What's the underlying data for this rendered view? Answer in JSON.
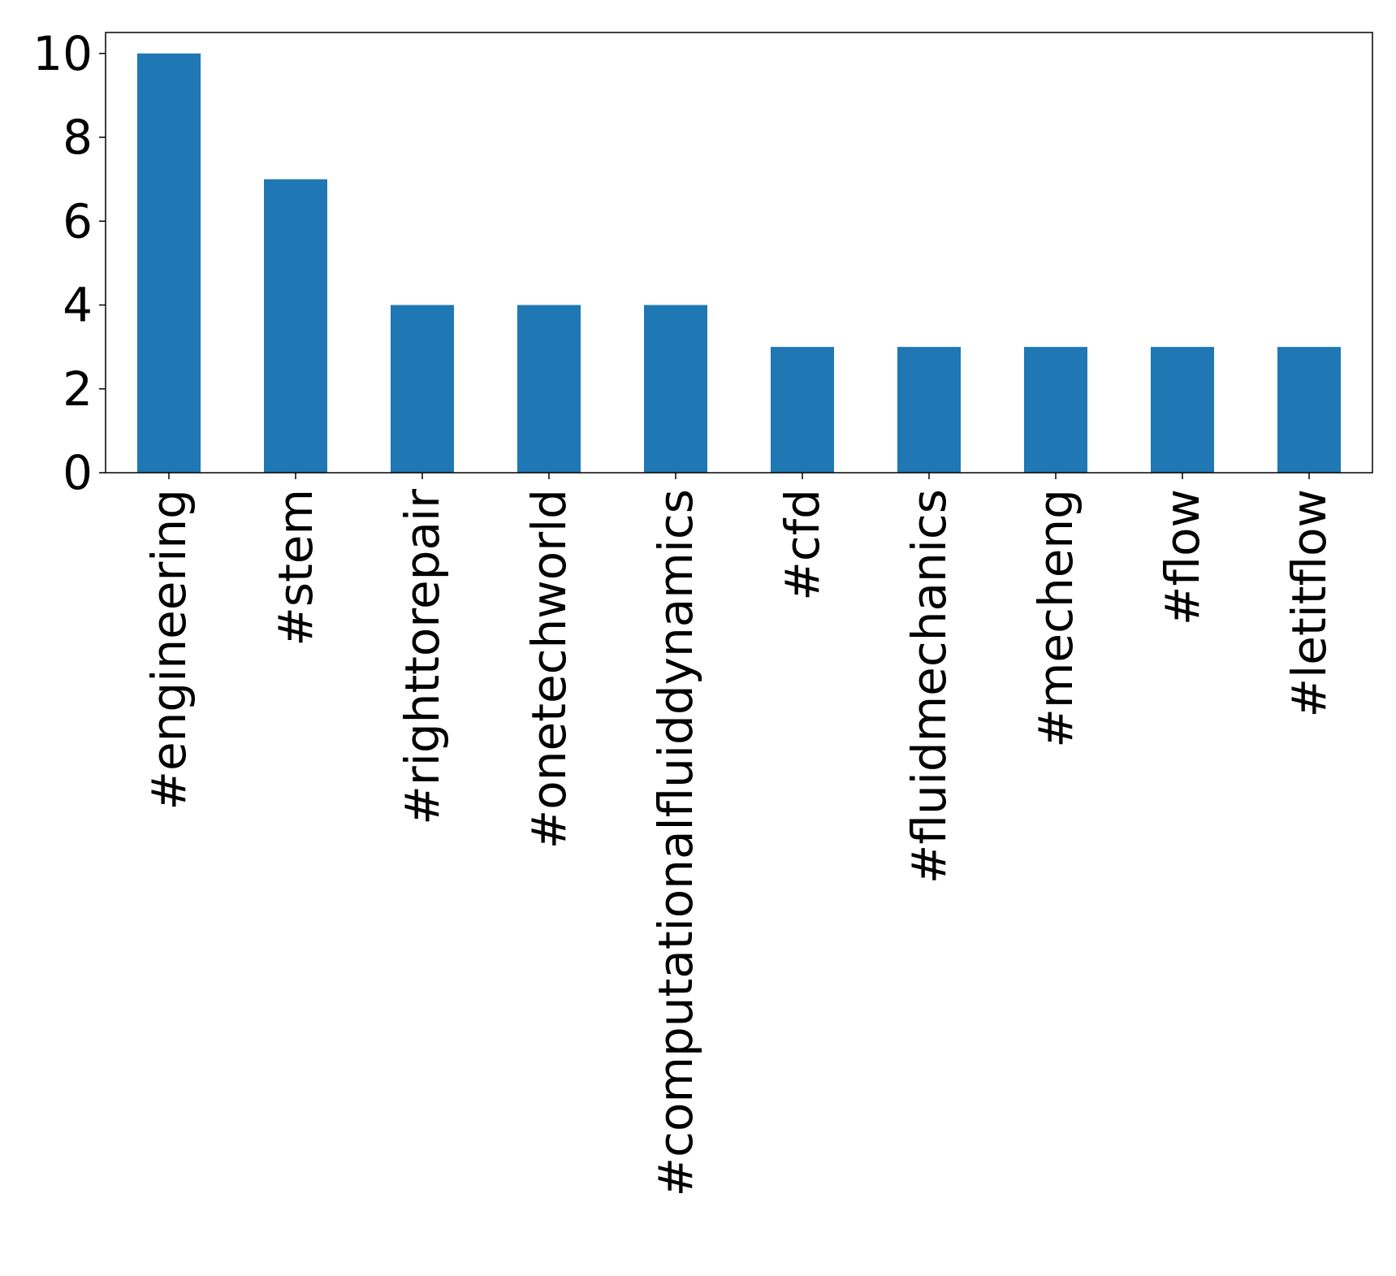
{
  "chart_data": {
    "type": "bar",
    "title": "",
    "xlabel": "",
    "ylabel": "",
    "categories": [
      "#engineering",
      "#stem",
      "#righttorepair",
      "#onetechworld",
      "#computationalfluiddynamics",
      "#cfd",
      "#fluidmechanics",
      "#mecheng",
      "#flow",
      "#letitflow"
    ],
    "values": [
      10,
      7,
      4,
      4,
      4,
      3,
      3,
      3,
      3,
      3
    ],
    "ylim": [
      0,
      10.5
    ],
    "yticks": [
      0,
      2,
      4,
      6,
      8,
      10
    ],
    "grid": false,
    "legend": "none",
    "colors": {
      "bar": "#1f77b4",
      "axes": "#000000",
      "background": "#ffffff"
    }
  }
}
